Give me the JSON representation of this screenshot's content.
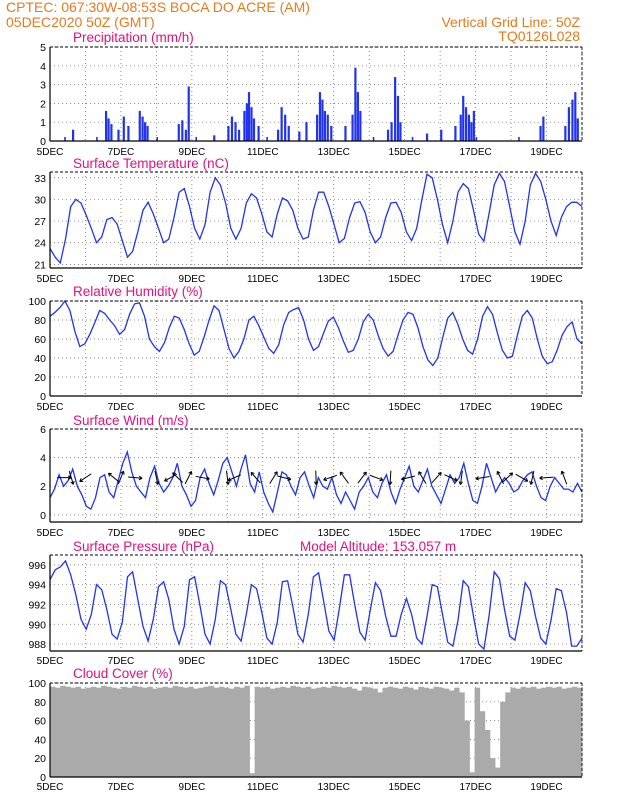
{
  "header": {
    "line1": "CPTEC:    067:30W-08:53S   BOCA DO ACRE (AM)",
    "line2": "05DEC2020 50Z (GMT)",
    "grid_note": "Vertical Grid Line: 50Z",
    "code": "TQ0126L028"
  },
  "date_labels": [
    "5DEC",
    "7DEC",
    "9DEC",
    "11DEC",
    "13DEC",
    "15DEC",
    "17DEC",
    "19DEC"
  ],
  "colors": {
    "line": "#2233ee",
    "bar": "#2233ee",
    "cloud": "#aaaaaa",
    "title": "#e0117f",
    "header": "#e87a1e"
  },
  "chart_data": [
    {
      "type": "bar",
      "title": "Precipitation (mm/h)",
      "ylim": [
        0,
        5
      ],
      "yticks": [
        "0",
        "1",
        "2",
        "3",
        "4",
        "5"
      ],
      "x_days": [
        0,
        15
      ],
      "events": [
        [
          0.62,
          0.6
        ],
        [
          1.55,
          1.6
        ],
        [
          1.62,
          1.2
        ],
        [
          1.7,
          0.9
        ],
        [
          1.9,
          0.6
        ],
        [
          2.05,
          1.3
        ],
        [
          2.18,
          0.8
        ],
        [
          2.5,
          1.6
        ],
        [
          2.58,
          1.3
        ],
        [
          2.65,
          1.0
        ],
        [
          2.72,
          0.8
        ],
        [
          3.6,
          0.9
        ],
        [
          3.7,
          1.1
        ],
        [
          3.8,
          0.6
        ],
        [
          3.88,
          2.9
        ],
        [
          4.6,
          0.3
        ],
        [
          5.0,
          0.8
        ],
        [
          5.1,
          1.3
        ],
        [
          5.2,
          1.0
        ],
        [
          5.3,
          0.6
        ],
        [
          5.45,
          1.6
        ],
        [
          5.52,
          2.0
        ],
        [
          5.58,
          2.6
        ],
        [
          5.65,
          1.8
        ],
        [
          5.72,
          1.2
        ],
        [
          5.85,
          0.8
        ],
        [
          6.4,
          0.6
        ],
        [
          6.5,
          1.8
        ],
        [
          6.6,
          1.4
        ],
        [
          6.7,
          0.8
        ],
        [
          7.0,
          0.5
        ],
        [
          7.2,
          1.0
        ],
        [
          7.5,
          1.4
        ],
        [
          7.58,
          2.6
        ],
        [
          7.65,
          2.2
        ],
        [
          7.72,
          1.6
        ],
        [
          7.8,
          1.4
        ],
        [
          7.9,
          0.8
        ],
        [
          8.3,
          0.8
        ],
        [
          8.5,
          1.4
        ],
        [
          8.58,
          3.9
        ],
        [
          8.65,
          2.6
        ],
        [
          8.72,
          1.6
        ],
        [
          9.5,
          0.6
        ],
        [
          9.6,
          1.0
        ],
        [
          9.7,
          3.4
        ],
        [
          9.78,
          2.4
        ],
        [
          9.85,
          1.0
        ],
        [
          10.6,
          0.4
        ],
        [
          11.0,
          0.6
        ],
        [
          11.4,
          0.8
        ],
        [
          11.55,
          1.4
        ],
        [
          11.62,
          2.4
        ],
        [
          11.7,
          1.8
        ],
        [
          11.78,
          1.4
        ],
        [
          11.85,
          1.0
        ],
        [
          11.92,
          1.6
        ],
        [
          13.8,
          0.8
        ],
        [
          13.88,
          1.3
        ],
        [
          14.5,
          0.8
        ],
        [
          14.6,
          1.8
        ],
        [
          14.7,
          2.2
        ],
        [
          14.78,
          2.6
        ],
        [
          14.85,
          1.2
        ]
      ]
    },
    {
      "type": "line",
      "title": "Surface Temperature (nC)",
      "ylim": [
        20.5,
        33.8
      ],
      "yticks": [
        "21",
        "24",
        "27",
        "30",
        "33"
      ],
      "yticks_values": [
        21,
        24,
        27,
        30,
        33
      ],
      "series": [
        {
          "values": [
            23.2,
            22.0,
            21.2,
            24.5,
            29.0,
            30.0,
            29.5,
            27.8,
            26.0,
            24.0,
            24.8,
            27.2,
            27.5,
            26.6,
            24.3,
            22.0,
            22.8,
            25.5,
            28.5,
            29.6,
            28.0,
            26.0,
            24.0,
            24.5,
            27.5,
            31.0,
            31.5,
            29.0,
            26.0,
            24.5,
            26.5,
            31.0,
            33.0,
            32.0,
            29.5,
            26.0,
            24.5,
            26.0,
            29.5,
            30.8,
            30.2,
            28.0,
            25.5,
            24.8,
            28.0,
            30.2,
            29.8,
            28.5,
            26.0,
            24.5,
            24.8,
            28.5,
            31.0,
            31.0,
            29.0,
            26.5,
            24.0,
            24.6,
            27.5,
            29.5,
            29.7,
            28.2,
            25.5,
            24.0,
            24.8,
            27.5,
            29.5,
            29.6,
            28.2,
            25.5,
            24.3,
            26.0,
            30.0,
            33.5,
            33.0,
            30.0,
            26.5,
            24.0,
            27.0,
            31.0,
            32.2,
            31.5,
            28.5,
            25.2,
            24.2,
            28.0,
            32.0,
            33.6,
            32.5,
            29.0,
            25.5,
            23.8,
            27.0,
            32.0,
            33.6,
            32.5,
            30.0,
            27.0,
            25.0,
            27.5,
            29.0,
            29.6,
            29.6,
            29.0
          ]
        }
      ]
    },
    {
      "type": "line",
      "title": "Relative Humidity (%)",
      "ylim": [
        0,
        100
      ],
      "yticks": [
        "0",
        "20",
        "40",
        "60",
        "80",
        "100"
      ],
      "yticks_values": [
        0,
        20,
        40,
        60,
        80,
        100
      ],
      "series": [
        {
          "values": [
            84,
            88,
            93,
            100,
            90,
            68,
            52,
            55,
            65,
            77,
            90,
            87,
            80,
            74,
            65,
            70,
            86,
            97,
            98,
            84,
            60,
            52,
            47,
            56,
            72,
            84,
            82,
            70,
            55,
            43,
            47,
            62,
            80,
            95,
            90,
            70,
            50,
            40,
            47,
            60,
            80,
            84,
            74,
            62,
            50,
            45,
            54,
            75,
            88,
            91,
            93,
            80,
            60,
            48,
            52,
            66,
            79,
            83,
            72,
            58,
            46,
            48,
            60,
            78,
            86,
            80,
            64,
            50,
            42,
            47,
            64,
            80,
            88,
            86,
            72,
            52,
            38,
            32,
            40,
            62,
            82,
            88,
            76,
            60,
            48,
            44,
            60,
            84,
            94,
            86,
            66,
            48,
            40,
            42,
            64,
            84,
            90,
            82,
            60,
            42,
            34,
            36,
            48,
            64,
            73,
            78,
            60,
            55
          ]
        }
      ]
    },
    {
      "type": "line",
      "title": "Surface Wind (m/s)",
      "ylim": [
        -0.5,
        6
      ],
      "yticks": [
        "0",
        "2",
        "4",
        "6"
      ],
      "yticks_values": [
        0,
        2,
        4,
        6
      ],
      "series": [
        {
          "values": [
            1.2,
            1.8,
            2.8,
            2.0,
            2.4,
            3.2,
            2.0,
            1.4,
            0.6,
            0.4,
            1.2,
            2.6,
            2.8,
            1.6,
            1.2,
            2.4,
            3.6,
            4.4,
            3.0,
            2.0,
            1.6,
            1.2,
            2.6,
            3.4,
            2.2,
            1.6,
            2.0,
            2.6,
            3.6,
            2.0,
            1.4,
            0.6,
            1.0,
            2.6,
            3.2,
            2.2,
            1.4,
            2.4,
            3.6,
            4.0,
            3.0,
            2.0,
            3.2,
            4.2,
            2.2,
            1.6,
            3.0,
            1.6,
            0.8,
            0.2,
            1.6,
            3.0,
            2.8,
            2.0,
            1.4,
            2.6,
            3.0,
            2.0,
            1.2,
            2.6,
            2.0,
            1.8,
            2.6,
            1.4,
            0.8,
            1.6,
            1.0,
            0.4,
            1.6,
            2.0,
            2.6,
            1.6,
            1.2,
            2.2,
            2.8,
            1.6,
            0.8,
            1.8,
            2.6,
            3.4,
            2.0,
            1.6,
            2.4,
            3.2,
            2.0,
            1.4,
            0.8,
            1.8,
            2.8,
            2.2,
            2.6,
            3.6,
            2.2,
            1.0,
            0.8,
            2.0,
            3.6,
            2.6,
            1.6,
            2.2,
            2.6,
            2.2,
            1.6,
            1.8,
            2.4,
            2.8,
            3.0,
            2.0,
            1.2,
            1.0,
            2.0,
            2.6,
            2.2,
            1.8,
            1.8,
            1.6,
            2.2,
            1.6
          ]
        }
      ],
      "arrow_days": [
        0.4,
        0.6,
        1.0,
        1.8,
        2.0,
        2.4,
        3.0,
        3.4,
        3.6,
        3.9,
        4.3,
        5.0,
        5.2,
        5.8,
        6.3,
        6.6,
        7.5,
        7.9,
        8.3,
        8.8,
        9.2,
        9.6,
        10.1,
        10.5,
        10.9,
        11.3,
        11.6,
        12.2,
        12.7,
        12.9,
        13.3,
        13.6,
        14.0,
        14.5
      ]
    },
    {
      "type": "line",
      "title": "Surface Pressure (hPa)",
      "annotation": "Model Altitude: 153.057 m",
      "ylim": [
        987.3,
        997.0
      ],
      "yticks": [
        "988",
        "990",
        "992",
        "994",
        "996"
      ],
      "yticks_values": [
        988,
        990,
        992,
        994,
        996
      ],
      "series": [
        {
          "values": [
            994.5,
            995.5,
            995.8,
            996.4,
            995.0,
            993.0,
            990.5,
            989.5,
            991.0,
            994.0,
            993.5,
            991.5,
            989.0,
            988.5,
            990.2,
            994.8,
            995.3,
            992.5,
            989.8,
            988.3,
            990.5,
            993.8,
            994.3,
            992.5,
            989.5,
            988.0,
            989.8,
            994.5,
            994.8,
            992.0,
            989.0,
            988.0,
            990.5,
            994.4,
            994.0,
            991.5,
            989.0,
            988.3,
            991.0,
            994.0,
            993.6,
            991.2,
            988.6,
            988.0,
            990.2,
            994.3,
            994.4,
            991.8,
            989.0,
            988.2,
            991.0,
            994.8,
            995.2,
            992.3,
            989.3,
            988.4,
            991.5,
            995.0,
            995.0,
            992.0,
            989.2,
            988.4,
            991.4,
            994.2,
            993.4,
            990.8,
            988.8,
            988.8,
            991.0,
            992.6,
            991.0,
            988.6,
            988.0,
            990.8,
            994.0,
            993.8,
            991.0,
            988.2,
            987.8,
            990.4,
            994.4,
            993.8,
            990.8,
            988.0,
            987.5,
            990.8,
            995.3,
            994.6,
            991.5,
            988.8,
            988.4,
            991.0,
            994.2,
            993.4,
            990.8,
            988.6,
            988.0,
            990.4,
            993.6,
            993.4,
            991.2,
            987.8,
            987.8,
            988.6
          ]
        }
      ]
    },
    {
      "type": "area",
      "title": "Cloud Cover (%)",
      "ylim": [
        0,
        100
      ],
      "yticks": [
        "0",
        "20",
        "40",
        "60",
        "80",
        "100"
      ],
      "yticks_values": [
        0,
        20,
        40,
        60,
        80,
        100
      ],
      "series": [
        {
          "values": [
            96,
            95,
            97,
            96,
            95,
            96,
            94,
            95,
            96,
            95,
            97,
            96,
            95,
            94,
            96,
            95,
            97,
            96,
            95,
            96,
            94,
            95,
            96,
            95,
            97,
            96,
            95,
            96,
            94,
            95,
            96,
            97,
            95,
            96,
            95,
            94,
            96,
            95,
            97,
            4,
            96,
            95,
            96,
            94,
            95,
            96,
            95,
            97,
            96,
            95,
            96,
            94,
            95,
            96,
            95,
            97,
            96,
            95,
            96,
            94,
            92,
            96,
            95,
            94,
            90,
            95,
            96,
            95,
            94,
            96,
            95,
            93,
            96,
            95,
            94,
            96,
            95,
            94,
            92,
            95,
            90,
            60,
            5,
            95,
            70,
            50,
            20,
            10,
            80,
            90,
            95,
            94,
            96,
            95,
            96,
            94,
            95,
            96,
            95,
            96,
            94,
            95,
            96,
            95
          ]
        }
      ]
    }
  ]
}
